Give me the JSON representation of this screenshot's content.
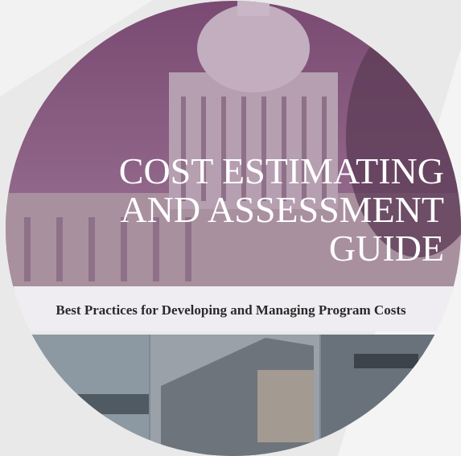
{
  "cover": {
    "title_lines": [
      "COST ESTIMATING",
      "AND ASSESSMENT",
      "GUIDE"
    ],
    "subtitle": "Best Practices for Developing and Managing Program Costs"
  }
}
